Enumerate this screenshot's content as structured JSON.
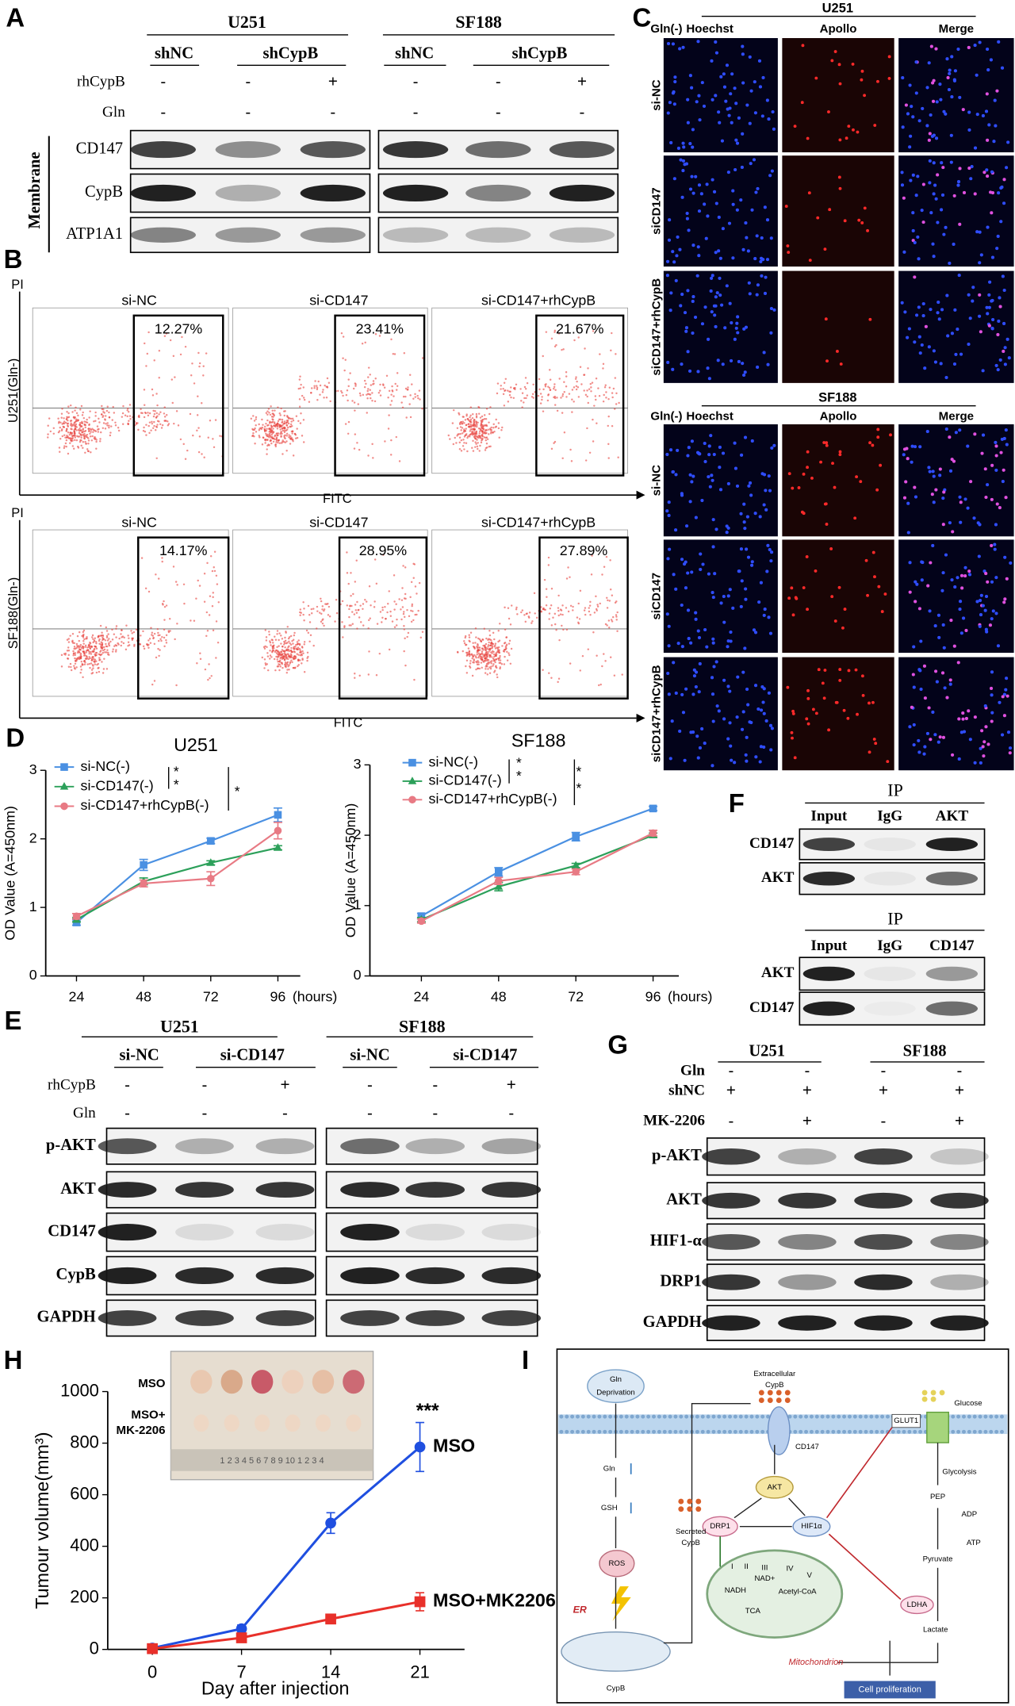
{
  "chart_data": [
    {
      "type": "line",
      "title": "U251",
      "ylabel": "OD Value (A=450nm)",
      "x_unit": "(hours)",
      "x": [
        24,
        48,
        72,
        96
      ],
      "xlim": [
        13,
        104
      ],
      "xticks": [
        24,
        48,
        72,
        96
      ],
      "ylim": [
        0,
        3
      ],
      "yticks": [
        0,
        1,
        2,
        3
      ],
      "legend": "upper left",
      "series": [
        {
          "name": "si-NC(-)",
          "color": "#4a90e2",
          "marker": "square",
          "values": [
            0.78,
            1.62,
            1.97,
            2.35
          ],
          "errors": [
            0.04,
            0.08,
            0.04,
            0.1
          ]
        },
        {
          "name": "si-CD147(-)",
          "color": "#2ca05a",
          "marker": "triangle",
          "values": [
            0.82,
            1.38,
            1.65,
            1.87
          ],
          "errors": [
            0.03,
            0.05,
            0.03,
            0.03
          ]
        },
        {
          "name": "si-CD147+rhCypB(-)",
          "color": "#e87a84",
          "marker": "circle",
          "values": [
            0.87,
            1.35,
            1.42,
            2.12
          ],
          "errors": [
            0.04,
            0.05,
            0.1,
            0.12
          ]
        }
      ],
      "significance": [
        "*",
        "*",
        "*"
      ]
    },
    {
      "type": "line",
      "title": "SF188",
      "ylabel": "OD Value (A=450nm)",
      "x_unit": "(hours)",
      "x": [
        24,
        48,
        72,
        96
      ],
      "xlim": [
        8,
        104
      ],
      "xticks": [
        24,
        48,
        72,
        96
      ],
      "ylim": [
        0,
        3
      ],
      "yticks": [
        0,
        1,
        2,
        3
      ],
      "legend": "upper left",
      "series": [
        {
          "name": "si-NC(-)",
          "color": "#4a90e2",
          "marker": "square",
          "values": [
            0.85,
            1.48,
            1.98,
            2.38
          ],
          "errors": [
            0.04,
            0.06,
            0.06,
            0.03
          ]
        },
        {
          "name": "si-CD147(-)",
          "color": "#2ca05a",
          "marker": "triangle",
          "values": [
            0.8,
            1.27,
            1.57,
            2.0
          ],
          "errors": [
            0.03,
            0.06,
            0.03,
            0.03
          ]
        },
        {
          "name": "si-CD147+rhCypB(-)",
          "color": "#e87a84",
          "marker": "circle",
          "values": [
            0.78,
            1.35,
            1.48,
            2.03
          ],
          "errors": [
            0.03,
            0.05,
            0.04,
            0.04
          ]
        }
      ],
      "significance": [
        "*",
        "*",
        "*",
        "*"
      ]
    },
    {
      "type": "line",
      "ylabel": "Tumour volume(mm³)",
      "xlabel": "Day after injection",
      "x": [
        0,
        7,
        14,
        21
      ],
      "xlim": [
        -3.5,
        24.5
      ],
      "xticks": [
        0,
        7,
        14,
        21
      ],
      "ylim": [
        0,
        1000
      ],
      "yticks": [
        0,
        200,
        400,
        600,
        800,
        1000
      ],
      "legend": "inline",
      "series": [
        {
          "name": "MSO",
          "color": "#1f4fe0",
          "marker": "circle",
          "values": [
            5,
            80,
            490,
            785
          ],
          "errors": [
            5,
            15,
            40,
            95
          ]
        },
        {
          "name": "MSO+MK2206",
          "color": "#e8302a",
          "marker": "square",
          "values": [
            3,
            45,
            118,
            185
          ],
          "errors": [
            3,
            10,
            15,
            35
          ]
        }
      ],
      "annotations": [
        "***"
      ]
    }
  ],
  "panels": {
    "A": {
      "letter": "A",
      "cell_lines": [
        "U251",
        "SF188"
      ],
      "groups": [
        "shNC",
        "shCypB",
        "shNC",
        "shCypB"
      ],
      "treatments": [
        {
          "name": "rhCypB",
          "signs": [
            "-",
            "-",
            "+",
            "-",
            "-",
            "+"
          ]
        },
        {
          "name": "Gln",
          "signs": [
            "-",
            "-",
            "-",
            "-",
            "-",
            "-"
          ]
        }
      ],
      "fraction": "Membrane",
      "blots": [
        "CD147",
        "CypB",
        "ATP1A1"
      ]
    },
    "B": {
      "letter": "B",
      "rows": [
        {
          "y_label": "PI",
          "row_label": "U251(Gln-)",
          "x_label": "FITC",
          "plots": [
            {
              "title": "si-NC",
              "percent": "12.27%"
            },
            {
              "title": "si-CD147",
              "percent": "23.41%"
            },
            {
              "title": "si-CD147+rhCypB",
              "percent": "21.67%"
            }
          ]
        },
        {
          "y_label": "PI",
          "row_label": "SF188(Gln-)",
          "x_label": "FITC",
          "plots": [
            {
              "title": "si-NC",
              "percent": "14.17%"
            },
            {
              "title": "si-CD147",
              "percent": "28.95%"
            },
            {
              "title": "si-CD147+rhCypB",
              "percent": "27.89%"
            }
          ]
        }
      ]
    },
    "C": {
      "letter": "C",
      "blocks": [
        {
          "condition": "Gln(-)",
          "cell_line": "U251",
          "columns": [
            "Hoechst",
            "Apollo",
            "Merge"
          ],
          "rows": [
            "si-NC",
            "siCD147",
            "siCD147+rhCypB"
          ]
        },
        {
          "condition": "Gln(-)",
          "cell_line": "SF188",
          "columns": [
            "Hoechst",
            "Apollo",
            "Merge"
          ],
          "rows": [
            "si-NC",
            "siCD147",
            "siCD147+rhCypB"
          ]
        }
      ]
    },
    "D": {
      "letter": "D"
    },
    "E": {
      "letter": "E",
      "cell_lines": [
        "U251",
        "SF188"
      ],
      "groups": [
        "si-NC",
        "si-CD147",
        "si-NC",
        "si-CD147"
      ],
      "treatments": [
        {
          "name": "rhCypB",
          "signs": [
            "-",
            "-",
            "+",
            "-",
            "-",
            "+"
          ]
        },
        {
          "name": "Gln",
          "signs": [
            "-",
            "-",
            "-",
            "-",
            "-",
            "-"
          ]
        }
      ],
      "blots": [
        "p-AKT",
        "AKT",
        "CD147",
        "CypB",
        "GAPDH"
      ]
    },
    "F": {
      "letter": "F",
      "blocks": [
        {
          "header": "IP",
          "lanes": [
            "Input",
            "IgG",
            "AKT"
          ],
          "blots": [
            "CD147",
            "AKT"
          ]
        },
        {
          "header": "IP",
          "lanes": [
            "Input",
            "IgG",
            "CD147"
          ],
          "blots": [
            "AKT",
            "CD147"
          ]
        }
      ]
    },
    "G": {
      "letter": "G",
      "cell_lines": [
        "U251",
        "SF188"
      ],
      "treatments": [
        {
          "name": "Gln",
          "signs": [
            "-",
            "-",
            "-",
            "-"
          ]
        },
        {
          "name": "shNC",
          "signs": [
            "+",
            "+",
            "+",
            "+"
          ]
        },
        {
          "name": "MK-2206",
          "signs": [
            "-",
            "+",
            "-",
            "+"
          ]
        }
      ],
      "blots": [
        "p-AKT",
        "AKT",
        "HIF1-α",
        "DRP1",
        "GAPDH"
      ]
    },
    "H": {
      "letter": "H",
      "photo_labels": [
        "MSO",
        "MSO+",
        "MK-2206"
      ],
      "ruler": "1 2 3 4 5 6 7 8 9 10 1 2 3 4"
    },
    "I": {
      "letter": "I",
      "labels": [
        "Gln",
        "Deprivation",
        "Extracellular",
        "CypB",
        "CD147",
        "GLUT1",
        "Glucose",
        "Gln",
        "GSH",
        "AKT",
        "DRP1",
        "HIF1α",
        "Glycolysis",
        "PEP",
        "ADP",
        "ATP",
        "Pyruvate",
        "LDHA",
        "Lactate",
        "Secreted",
        "CypB",
        "ROS",
        "ER",
        "CypB",
        "NADH",
        "NAD+",
        "Acetyl-CoA",
        "TCA",
        "Mitochondrion",
        "Cell proliferation",
        "I",
        "II",
        "III",
        "IV",
        "V"
      ]
    }
  }
}
